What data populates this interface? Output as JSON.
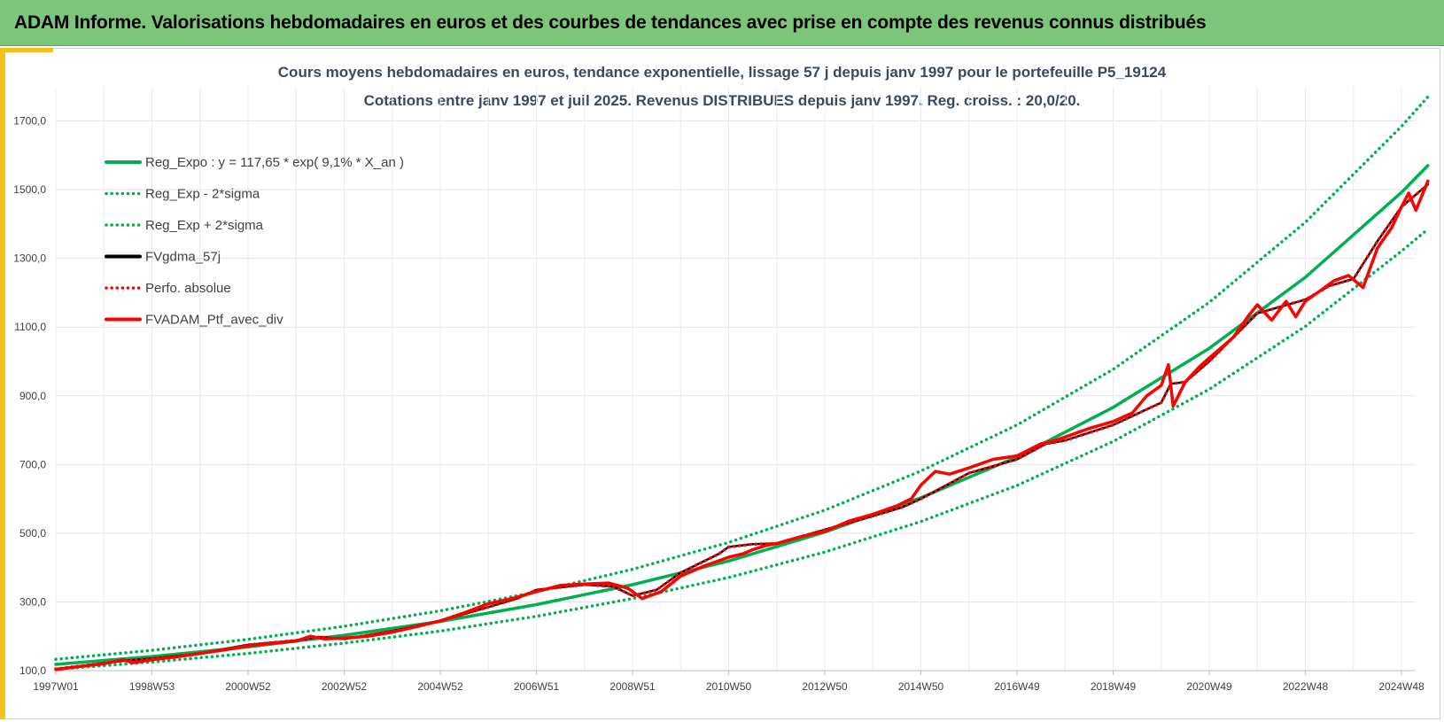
{
  "banner": {
    "title": "ADAM Informe. Valorisations hebdomadaires en euros et des courbes de tendances avec prise en compte des revenus connus distribués"
  },
  "chart_data": {
    "type": "line",
    "title": "Cours moyens hebdomadaires  en euros, tendance exponentielle, lissage 57 j depuis janv 1997 pour le portefeuille P5_19124",
    "subtitle": "Cotations entre janv 1997 et juil 2025. Revenus DISTRIBUES depuis janv 1997. Reg. croiss. : 20,0/20.",
    "xlabel": "",
    "ylabel": "",
    "x_range": [
      1997.0,
      2025.55
    ],
    "ylim": [
      100,
      1800
    ],
    "y_ticks": [
      "100,0",
      "300,0",
      "500,0",
      "700,0",
      "900,0",
      "1100,0",
      "1300,0",
      "1500,0",
      "1700,0"
    ],
    "y_tick_values": [
      100,
      300,
      500,
      700,
      900,
      1100,
      1300,
      1500,
      1700
    ],
    "x_ticks": [
      "1997W01",
      "1998W53",
      "2000W52",
      "2002W52",
      "2004W52",
      "2006W51",
      "2008W51",
      "2010W50",
      "2012W50",
      "2014W50",
      "2016W49",
      "2018W49",
      "2020W49",
      "2022W48",
      "2024W48"
    ],
    "x_tick_values": [
      1997.0,
      1999.0,
      2001.0,
      2003.0,
      2005.0,
      2007.0,
      2009.0,
      2011.0,
      2013.0,
      2015.0,
      2017.0,
      2019.0,
      2021.0,
      2023.0,
      2025.0
    ],
    "grid": true,
    "legend_position": "top-left",
    "series": [
      {
        "name": "Reg_Expo : y = 117,65 * exp( 9,1% *  X_an )",
        "color": "#00b050",
        "style": "solid",
        "x": [
          1997.0,
          1999.0,
          2001.0,
          2003.0,
          2005.0,
          2007.0,
          2009.0,
          2011.0,
          2013.0,
          2015.0,
          2017.0,
          2019.0,
          2021.0,
          2023.0,
          2025.0,
          2025.55
        ],
        "values": [
          118,
          141,
          169,
          203,
          243,
          292,
          350,
          419,
          503,
          603,
          722,
          866,
          1038,
          1245,
          1492,
          1570
        ]
      },
      {
        "name": "Reg_Exp - 2*sigma",
        "color": "#00b050",
        "style": "dotted",
        "x": [
          1997.0,
          1999.0,
          2001.0,
          2003.0,
          2005.0,
          2007.0,
          2009.0,
          2011.0,
          2013.0,
          2015.0,
          2017.0,
          2019.0,
          2021.0,
          2023.0,
          2025.0,
          2025.55
        ],
        "values": [
          104,
          125,
          150,
          180,
          215,
          258,
          310,
          371,
          445,
          534,
          639,
          767,
          919,
          1102,
          1321,
          1385
        ]
      },
      {
        "name": "Reg_Exp + 2*sigma",
        "color": "#00b050",
        "style": "dotted",
        "x": [
          1997.0,
          1999.0,
          2001.0,
          2003.0,
          2005.0,
          2007.0,
          2009.0,
          2011.0,
          2013.0,
          2015.0,
          2017.0,
          2019.0,
          2021.0,
          2023.0,
          2025.0,
          2025.55
        ],
        "values": [
          133,
          159,
          191,
          229,
          274,
          329,
          395,
          473,
          567,
          681,
          815,
          977,
          1172,
          1405,
          1684,
          1770
        ]
      },
      {
        "name": "FVgdma_57j",
        "color": "#000000",
        "style": "solid",
        "x": [
          1997.0,
          1998.0,
          1998.5,
          1999.0,
          2000.0,
          2001.0,
          2002.0,
          2002.5,
          2003.0,
          2004.0,
          2005.0,
          2006.0,
          2006.6,
          2007.0,
          2008.0,
          2008.6,
          2009.0,
          2009.5,
          2010.0,
          2010.8,
          2011.0,
          2011.5,
          2012.0,
          2013.0,
          2014.0,
          2014.6,
          2015.0,
          2016.0,
          2017.0,
          2017.6,
          2018.0,
          2019.0,
          2020.0,
          2020.2,
          2020.5,
          2021.0,
          2022.0,
          2022.5,
          2023.0,
          2023.5,
          2024.0,
          2024.5,
          2025.0,
          2025.55
        ],
        "values": [
          105,
          122,
          130,
          135,
          150,
          175,
          188,
          198,
          192,
          215,
          245,
          285,
          310,
          335,
          350,
          345,
          318,
          335,
          385,
          440,
          460,
          468,
          470,
          510,
          550,
          575,
          600,
          675,
          715,
          760,
          770,
          815,
          880,
          935,
          940,
          1000,
          1140,
          1160,
          1180,
          1220,
          1240,
          1350,
          1450,
          1515
        ]
      },
      {
        "name": "Perfo. absolue",
        "color": "#ff0000",
        "style": "dotted",
        "x": [
          1997.0,
          1998.0,
          1998.5,
          1999.0,
          2000.0,
          2001.0,
          2002.0,
          2002.5,
          2003.0,
          2004.0,
          2005.0,
          2006.0,
          2006.6,
          2007.0,
          2008.0,
          2008.6,
          2009.0,
          2009.5,
          2010.0,
          2010.8,
          2011.0,
          2011.5,
          2012.0,
          2013.0,
          2014.0,
          2014.6,
          2015.0,
          2016.0,
          2017.0,
          2017.6,
          2018.0,
          2019.0,
          2020.0,
          2020.2,
          2020.5,
          2021.0,
          2022.0,
          2022.5,
          2023.0,
          2023.5,
          2024.0,
          2024.5,
          2025.0,
          2025.55
        ],
        "values": [
          105,
          122,
          130,
          135,
          150,
          175,
          188,
          198,
          192,
          215,
          245,
          285,
          310,
          335,
          350,
          345,
          318,
          335,
          385,
          440,
          460,
          468,
          470,
          510,
          550,
          575,
          600,
          675,
          715,
          760,
          770,
          815,
          880,
          935,
          940,
          1000,
          1140,
          1160,
          1180,
          1220,
          1240,
          1350,
          1450,
          1515
        ]
      },
      {
        "name": "FVADAM_Ptf_avec_div",
        "color": "#ff0000",
        "style": "solid",
        "x": [
          1997.0,
          1997.5,
          1998.0,
          1998.4,
          1998.6,
          1999.0,
          1999.5,
          2000.0,
          2000.5,
          2001.0,
          2001.5,
          2002.0,
          2002.3,
          2002.6,
          2003.0,
          2003.5,
          2004.0,
          2004.5,
          2005.0,
          2005.5,
          2006.0,
          2006.5,
          2007.0,
          2007.5,
          2008.0,
          2008.5,
          2008.9,
          2009.2,
          2009.6,
          2010.0,
          2010.5,
          2011.0,
          2011.3,
          2011.5,
          2011.8,
          2012.0,
          2012.5,
          2013.0,
          2013.5,
          2014.0,
          2014.5,
          2014.8,
          2015.0,
          2015.3,
          2015.6,
          2016.0,
          2016.5,
          2017.0,
          2017.5,
          2017.8,
          2018.0,
          2018.5,
          2019.0,
          2019.4,
          2019.7,
          2020.0,
          2020.15,
          2020.25,
          2020.5,
          2020.8,
          2021.0,
          2021.5,
          2021.8,
          2022.0,
          2022.3,
          2022.6,
          2022.8,
          2023.0,
          2023.3,
          2023.6,
          2023.9,
          2024.2,
          2024.5,
          2024.8,
          2025.0,
          2025.15,
          2025.3,
          2025.55
        ],
        "values": [
          103,
          112,
          120,
          132,
          123,
          132,
          140,
          150,
          160,
          172,
          180,
          186,
          200,
          192,
          195,
          200,
          212,
          228,
          245,
          268,
          295,
          310,
          330,
          348,
          352,
          355,
          340,
          310,
          330,
          375,
          405,
          430,
          440,
          452,
          465,
          470,
          490,
          505,
          535,
          555,
          580,
          600,
          640,
          680,
          672,
          690,
          715,
          725,
          760,
          770,
          780,
          805,
          825,
          850,
          900,
          930,
          990,
          870,
          940,
          985,
          1010,
          1070,
          1130,
          1165,
          1120,
          1175,
          1130,
          1175,
          1205,
          1235,
          1250,
          1215,
          1330,
          1390,
          1450,
          1490,
          1440,
          1525
        ]
      }
    ]
  }
}
